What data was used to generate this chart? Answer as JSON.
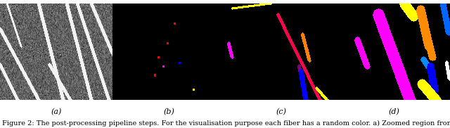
{
  "figure_caption": "Figure 2: The post-processing pipeline steps. For the visualisation purpose each fiber has a random color. a) Zoomed region from a slice of",
  "subfig_labels": [
    "(a)",
    "(b)",
    "(c)",
    "(d)"
  ],
  "background_color": "#ffffff",
  "caption_fontsize": 7.0,
  "label_fontsize": 8,
  "panel_a_noise_mean": 0.38,
  "panel_a_noise_std": 0.1,
  "panel_a_fibers": [
    [
      95,
      0,
      130,
      135,
      0.95,
      2
    ],
    [
      110,
      0,
      155,
      135,
      0.95,
      2
    ],
    [
      55,
      0,
      90,
      135,
      0.95,
      2
    ],
    [
      0,
      35,
      55,
      135,
      0.95,
      2
    ],
    [
      0,
      85,
      25,
      135,
      0.95,
      2
    ],
    [
      130,
      0,
      160,
      70,
      0.95,
      2
    ],
    [
      70,
      85,
      100,
      135,
      0.95,
      2
    ],
    [
      10,
      0,
      30,
      60,
      0.95,
      1
    ]
  ],
  "panel_b_dots": [
    [
      88,
      28,
      [
        1.0,
        0.0,
        0.0
      ]
    ],
    [
      78,
      55,
      [
        1.0,
        0.0,
        0.0
      ]
    ],
    [
      65,
      75,
      [
        1.0,
        0.0,
        0.0
      ]
    ],
    [
      95,
      83,
      [
        0.0,
        0.0,
        1.0
      ]
    ],
    [
      72,
      88,
      [
        1.0,
        0.0,
        0.9
      ]
    ],
    [
      60,
      100,
      [
        1.0,
        0.0,
        0.0
      ]
    ],
    [
      115,
      120,
      [
        1.0,
        1.0,
        0.0
      ]
    ]
  ],
  "panel_c_lines": [
    [
      5,
      55,
      10,
      75,
      [
        1.0,
        0.0,
        1.0
      ],
      2
    ],
    [
      65,
      0,
      10,
      7,
      [
        1.0,
        1.0,
        0.0
      ],
      1
    ],
    [
      75,
      15,
      135,
      135,
      [
        1.0,
        0.0,
        0.3
      ],
      2
    ],
    [
      110,
      42,
      120,
      80,
      [
        1.0,
        0.5,
        0.0
      ],
      2
    ],
    [
      105,
      87,
      108,
      100,
      [
        0.5,
        0.0,
        0.5
      ],
      2
    ],
    [
      108,
      95,
      115,
      135,
      [
        0.0,
        0.0,
        1.0
      ],
      3
    ],
    [
      130,
      118,
      145,
      135,
      [
        1.0,
        1.0,
        0.0
      ],
      2
    ]
  ],
  "panel_d_lines": [
    [
      95,
      0,
      108,
      18,
      [
        1.0,
        1.0,
        0.0
      ],
      7
    ],
    [
      58,
      15,
      103,
      135,
      [
        1.0,
        0.0,
        1.0
      ],
      8
    ],
    [
      118,
      8,
      130,
      60,
      [
        1.0,
        0.55,
        0.0
      ],
      6
    ],
    [
      130,
      55,
      135,
      75,
      [
        1.0,
        0.55,
        0.0
      ],
      5
    ],
    [
      122,
      78,
      130,
      90,
      [
        0.0,
        0.55,
        1.0
      ],
      4
    ],
    [
      132,
      88,
      138,
      120,
      [
        0.0,
        0.0,
        1.0
      ],
      5
    ],
    [
      120,
      112,
      140,
      135,
      [
        1.0,
        1.0,
        0.0
      ],
      7
    ],
    [
      28,
      50,
      42,
      88,
      [
        1.0,
        0.0,
        1.0
      ],
      4
    ],
    [
      150,
      0,
      158,
      40,
      [
        0.0,
        0.4,
        1.0
      ],
      4
    ],
    [
      155,
      82,
      159,
      105,
      [
        1.0,
        1.0,
        1.0
      ],
      2
    ]
  ]
}
